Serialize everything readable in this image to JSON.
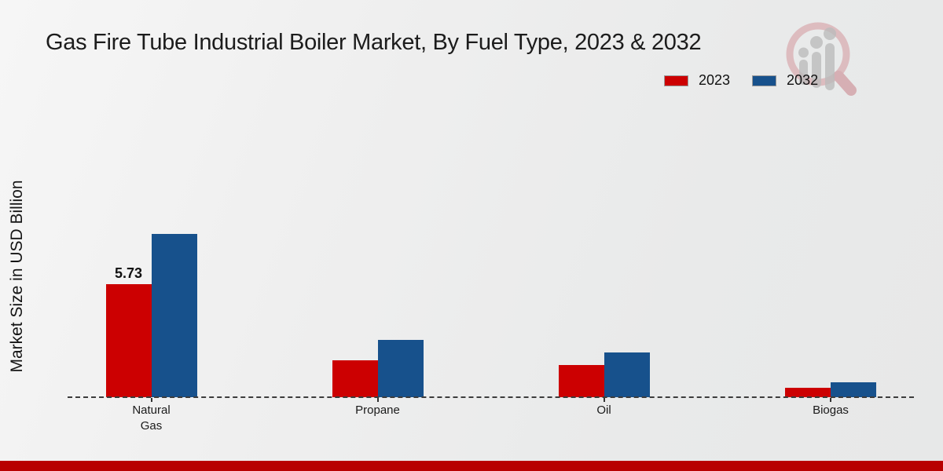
{
  "title": "Gas Fire Tube Industrial Boiler Market, By Fuel Type, 2023 & 2032",
  "y_axis_label": "Market Size in USD Billion",
  "legend": [
    {
      "label": "2023",
      "color": "#cc0001"
    },
    {
      "label": "2032",
      "color": "#17518c"
    }
  ],
  "footer": {
    "accent_color": "#b80000"
  },
  "colors": {
    "series_2023": "#cc0001",
    "series_2032": "#17518c",
    "baseline": "#3c3c3c",
    "background": "#ededed"
  },
  "chart_data": {
    "type": "bar",
    "categories": [
      "Natural Gas",
      "Propane",
      "Oil",
      "Biogas"
    ],
    "series": [
      {
        "name": "2023",
        "color": "#cc0001",
        "values": [
          5.73,
          1.87,
          1.63,
          0.48
        ]
      },
      {
        "name": "2032",
        "color": "#17518c",
        "values": [
          8.28,
          2.9,
          2.27,
          0.76
        ]
      }
    ],
    "value_labels": [
      {
        "series": "2023",
        "category": "Natural Gas",
        "text": "5.73"
      }
    ],
    "ylabel": "Market Size in USD Billion",
    "ylim": [
      0,
      9
    ],
    "grid": false,
    "baseline_style": "dashed",
    "legend_position": "top-right"
  }
}
